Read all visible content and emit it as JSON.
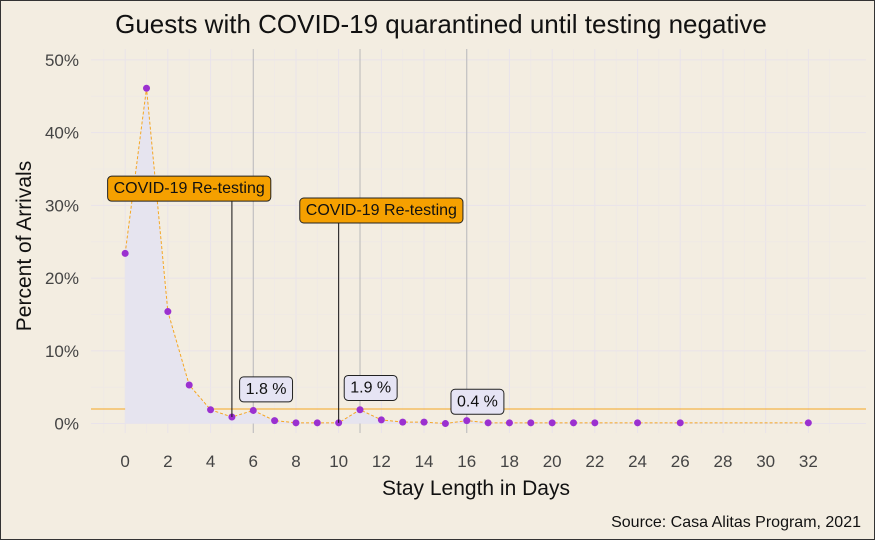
{
  "chart_data": {
    "type": "line",
    "title": "Guests with COVID-19 quarantined until testing negative",
    "xlabel": "Stay Length in Days",
    "ylabel": "Percent of Arrivals",
    "caption": "Source: Casa Alitas Program, 2021",
    "xlim": [
      -1.6,
      34.7
    ],
    "ylim": [
      -1.3,
      51.5
    ],
    "x_ticks": [
      0,
      2,
      4,
      6,
      8,
      10,
      12,
      14,
      16,
      18,
      20,
      22,
      24,
      26,
      28,
      30,
      32
    ],
    "y_ticks": [
      0,
      10,
      20,
      30,
      40,
      50
    ],
    "y_tick_labels": [
      "0%",
      "10%",
      "20%",
      "30%",
      "40%",
      "50%"
    ],
    "grid": true,
    "series": [
      {
        "x": [
          0,
          1,
          2,
          3,
          4,
          5,
          6,
          7,
          8,
          9,
          10,
          11,
          12,
          13,
          14,
          15,
          16,
          17,
          18,
          19,
          20,
          21,
          22,
          24,
          26,
          32
        ],
        "y": [
          23.4,
          46.1,
          15.4,
          5.3,
          1.9,
          0.9,
          1.8,
          0.4,
          0.1,
          0.1,
          0.1,
          1.9,
          0.5,
          0.2,
          0.2,
          0.0,
          0.4,
          0.1,
          0.1,
          0.1,
          0.1,
          0.1,
          0.1,
          0.1,
          0.1,
          0.1
        ]
      }
    ],
    "reference_lines": {
      "vertical_x": [
        6,
        11,
        16
      ],
      "horizontal_y": 2
    },
    "annotations": [
      {
        "text": "COVID-19 Re-testing",
        "x": 3,
        "y": 32.5,
        "points_to": [
          5,
          0.9
        ]
      },
      {
        "text": "COVID-19 Re-testing",
        "x": 12,
        "y": 29.5,
        "points_to": [
          10,
          0.1
        ]
      },
      {
        "text": "1.8 %",
        "x": 6.6,
        "y": 4.9
      },
      {
        "text": "1.9 %",
        "x": 11.5,
        "y": 5.1
      },
      {
        "text": "0.4 %",
        "x": 16.5,
        "y": 3.2
      }
    ],
    "colors": {
      "background": "#f3ede1",
      "area": "#e6e4ef",
      "line": "#f5a623",
      "points": "#9b30d0",
      "reference_line": "#b9b9b9",
      "horizontal_line": "#f5a623",
      "retest_label": "#f5a000",
      "value_label": "#e6e4f4"
    }
  }
}
